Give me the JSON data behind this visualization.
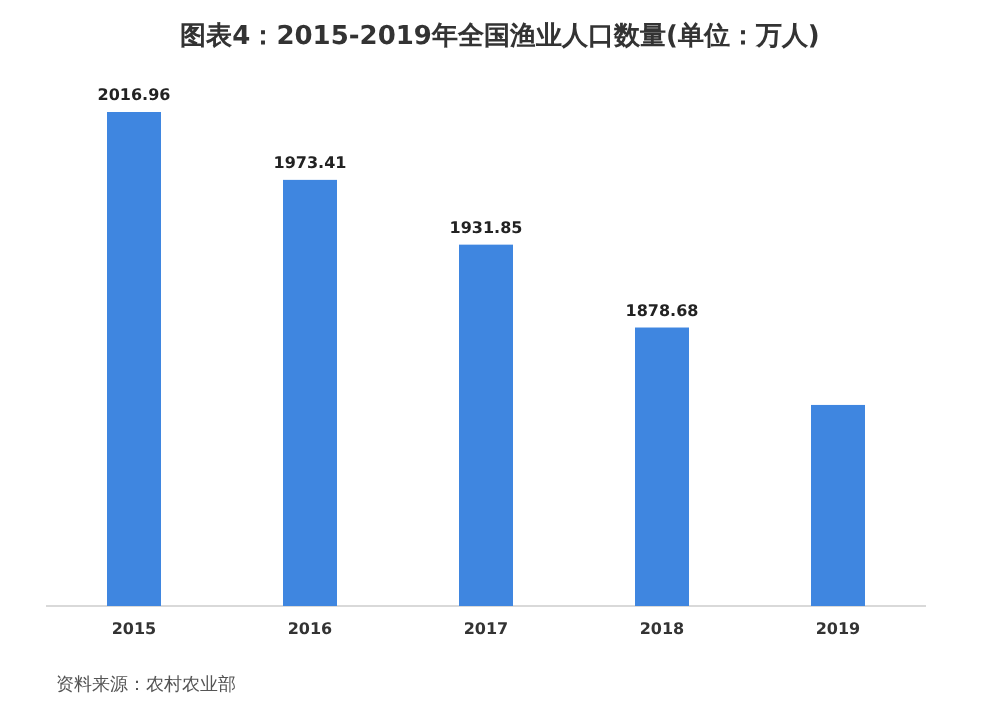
{
  "chart_data": {
    "type": "bar",
    "title": "图表4：2015-2019年全国渔业人口数量(单位：万人)",
    "categories": [
      "2015",
      "2016",
      "2017",
      "2018",
      "2019"
    ],
    "values": [
      2016.96,
      1973.41,
      1931.85,
      1878.68,
      1829
    ],
    "value_labels": [
      "2016.96",
      "1973.41",
      "1931.85",
      "1878.68",
      null
    ],
    "color": "#3f86e0",
    "ylim": [
      1700,
      2016.96
    ],
    "annotations": [
      "资料来源：农村农业部"
    ]
  }
}
